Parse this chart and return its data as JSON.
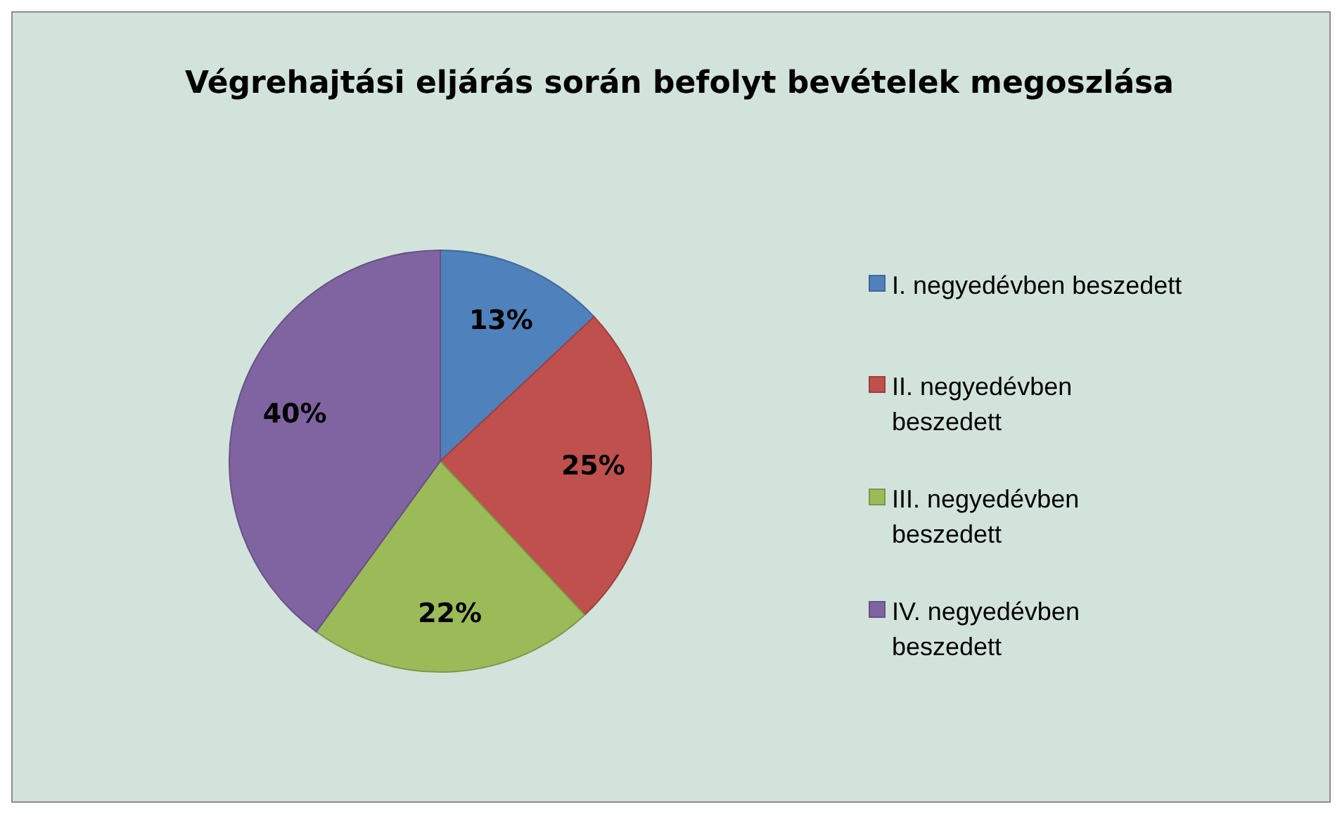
{
  "chart_data": {
    "type": "pie",
    "title": "Végrehajtási eljárás során befolyt bevételek megoszlása",
    "categories": [
      "I. negyedévben beszedett",
      "II. negyedévben beszedett",
      "III. negyedévben beszedett",
      "IV. negyedévben beszedett"
    ],
    "values": [
      13,
      25,
      22,
      40
    ],
    "value_labels": [
      "13%",
      "25%",
      "22%",
      "40%"
    ],
    "colors": [
      "#4f81bd",
      "#c0504d",
      "#9bbb59",
      "#8064a2"
    ],
    "legend": "right"
  }
}
